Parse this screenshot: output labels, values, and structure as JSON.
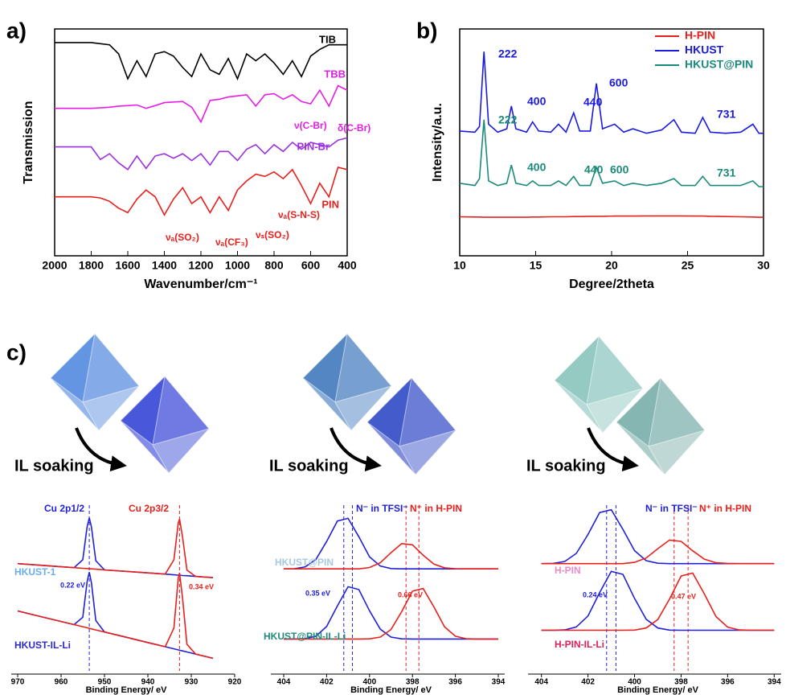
{
  "figure": {
    "panel_labels": [
      "a)",
      "b)",
      "c)"
    ],
    "steps": [
      "IL soaking",
      "IL soaking",
      "IL soaking"
    ]
  },
  "chart_data": [
    {
      "type": "line",
      "xlabel": "Wavenumber/cm⁻¹",
      "ylabel": "Transmission",
      "xlim": [
        2000,
        400
      ],
      "xticks": [
        2000,
        1800,
        1600,
        1400,
        1200,
        1000,
        800,
        600,
        400
      ],
      "ylim": [
        0,
        10
      ],
      "x": [
        2000,
        1950,
        1900,
        1850,
        1800,
        1750,
        1700,
        1650,
        1600,
        1550,
        1500,
        1450,
        1400,
        1350,
        1300,
        1250,
        1200,
        1150,
        1100,
        1050,
        1000,
        950,
        900,
        850,
        800,
        750,
        700,
        650,
        600,
        550,
        500,
        450,
        400
      ],
      "series": [
        {
          "name": "TIB",
          "color": "#000000",
          "values": [
            9.4,
            9.4,
            9.4,
            9.4,
            9.4,
            9.35,
            9.3,
            8.9,
            7.8,
            8.6,
            7.9,
            8.9,
            9.0,
            8.8,
            8.3,
            7.9,
            8.9,
            8.2,
            8.0,
            8.7,
            7.8,
            8.9,
            8.6,
            8.9,
            8.5,
            8.0,
            8.6,
            7.9,
            8.8,
            9.1,
            9.3,
            9.3,
            9.3
          ]
        },
        {
          "name": "TBB",
          "color": "#e51ee5",
          "values": [
            6.5,
            6.5,
            6.5,
            6.5,
            6.5,
            6.52,
            6.55,
            6.6,
            6.62,
            6.65,
            6.5,
            6.62,
            6.75,
            6.78,
            6.8,
            6.55,
            5.9,
            6.85,
            6.9,
            7.0,
            7.05,
            7.1,
            6.6,
            7.1,
            7.15,
            6.9,
            7.1,
            6.8,
            6.7,
            7.3,
            6.6,
            7.5,
            7.3
          ]
        },
        {
          "name": "PIN-Br",
          "color": "#9b30e0",
          "values": [
            4.8,
            4.8,
            4.8,
            4.8,
            4.8,
            4.25,
            4.5,
            4.1,
            3.8,
            4.4,
            3.85,
            4.4,
            4.5,
            4.3,
            4.5,
            4.2,
            4.5,
            4.0,
            4.6,
            4.6,
            4.2,
            4.7,
            4.9,
            4.5,
            4.9,
            4.6,
            5.0,
            4.7,
            5.0,
            4.9,
            4.8,
            5.1,
            5.2
          ]
        },
        {
          "name": "PIN",
          "color": "#e8201c",
          "values": [
            2.6,
            2.6,
            2.6,
            2.6,
            2.6,
            2.55,
            2.4,
            2.1,
            1.9,
            2.5,
            2.9,
            2.6,
            1.8,
            2.5,
            3.0,
            2.3,
            2.6,
            1.9,
            2.6,
            2.0,
            2.9,
            3.3,
            3.6,
            3.5,
            3.7,
            3.4,
            3.8,
            3.1,
            2.3,
            3.2,
            2.6,
            3.9,
            3.8
          ]
        }
      ],
      "annotations": [
        {
          "text": "ν(C-Br)",
          "color": "#e51ee5"
        },
        {
          "text": "δ(C-Br)",
          "color": "#e51ee5"
        },
        {
          "text": "νₐ(SO₂)",
          "color": "#e8201c"
        },
        {
          "text": "νₐ(CF₃)",
          "color": "#e8201c"
        },
        {
          "text": "νₛ(SO₂)",
          "color": "#e8201c"
        },
        {
          "text": "νₐ(S-N-S)",
          "color": "#e8201c"
        }
      ]
    },
    {
      "type": "line",
      "xlabel": "Degree/2theta",
      "ylabel": "Intensity/a.u.",
      "xlim": [
        10,
        30
      ],
      "xticks": [
        10,
        15,
        20,
        25,
        30
      ],
      "ylim": [
        0,
        10
      ],
      "legend": "upper right",
      "x": [
        10,
        11,
        11.3,
        11.6,
        11.9,
        12.5,
        13.1,
        13.4,
        13.7,
        14.4,
        14.8,
        15.2,
        16.0,
        16.5,
        17.0,
        17.5,
        17.9,
        18.6,
        19.0,
        19.4,
        20.2,
        20.8,
        21.4,
        22.3,
        23.3,
        24.1,
        24.6,
        25.5,
        26.0,
        26.5,
        27.5,
        28.5,
        29.3,
        29.7,
        30
      ],
      "series": [
        {
          "name": "H-PIN",
          "color": "#e8201c",
          "values": [
            1.72,
            1.71,
            1.71,
            1.7,
            1.7,
            1.7,
            1.7,
            1.7,
            1.7,
            1.7,
            1.71,
            1.71,
            1.72,
            1.72,
            1.72,
            1.73,
            1.73,
            1.74,
            1.74,
            1.74,
            1.75,
            1.75,
            1.75,
            1.76,
            1.76,
            1.76,
            1.76,
            1.75,
            1.75,
            1.74,
            1.73,
            1.72,
            1.71,
            1.7,
            1.7
          ]
        },
        {
          "name": "HKUST",
          "color": "#1a1ae0",
          "values": [
            5.5,
            5.45,
            5.7,
            9.0,
            5.8,
            5.45,
            5.6,
            6.6,
            5.6,
            5.45,
            5.9,
            5.5,
            5.45,
            5.8,
            5.45,
            6.3,
            5.5,
            5.5,
            7.6,
            5.6,
            5.8,
            5.45,
            5.6,
            5.4,
            5.55,
            6.0,
            5.45,
            5.4,
            6.1,
            5.45,
            5.4,
            5.45,
            5.8,
            5.4,
            5.4
          ]
        },
        {
          "name": "HKUST@PIN",
          "color": "#1a8a7a",
          "values": [
            3.2,
            3.1,
            3.4,
            6.0,
            3.3,
            3.1,
            3.2,
            4.0,
            3.2,
            3.1,
            3.3,
            3.1,
            3.1,
            3.3,
            3.1,
            3.5,
            3.1,
            3.1,
            3.9,
            3.2,
            3.3,
            3.1,
            3.2,
            3.1,
            3.2,
            3.4,
            3.1,
            3.1,
            3.5,
            3.1,
            3.1,
            3.1,
            3.3,
            3.05,
            3.05
          ]
        }
      ],
      "annotations": [
        {
          "text": "222",
          "color": "#1a1ae0"
        },
        {
          "text": "400",
          "color": "#1a1ae0"
        },
        {
          "text": "440",
          "color": "#1a1ae0"
        },
        {
          "text": "600",
          "color": "#1a1ae0"
        },
        {
          "text": "731",
          "color": "#1a1ae0"
        },
        {
          "text": "222",
          "color": "#1a8a7a"
        },
        {
          "text": "400",
          "color": "#1a8a7a"
        },
        {
          "text": "440",
          "color": "#1a8a7a"
        },
        {
          "text": "600",
          "color": "#1a8a7a"
        },
        {
          "text": "731",
          "color": "#1a8a7a"
        }
      ]
    },
    {
      "type": "line",
      "xlabel": "Binding Energy/ eV",
      "xlim": [
        970,
        920
      ],
      "xticks": [
        970,
        960,
        950,
        940,
        930,
        920
      ],
      "ylim": [
        0,
        10
      ],
      "x": [
        970,
        965,
        960,
        957,
        955,
        954,
        953.5,
        953,
        952,
        950,
        945,
        940,
        936,
        934,
        933,
        932.7,
        932,
        931,
        929,
        925
      ],
      "series": [
        {
          "color": "#2020d8",
          "values": [
            6.3,
            6.21,
            6.12,
            6.07,
            6.52,
            8.4,
            8.91,
            8.38,
            6.47,
            5.94,
            5.86,
            5.77,
            5.7,
            5.66,
            5.64,
            5.64,
            5.62,
            5.61,
            5.57,
            5.5
          ]
        },
        {
          "color": "#e8201c",
          "values": [
            6.3,
            6.21,
            6.12,
            6.07,
            6.03,
            6.02,
            6.01,
            6.0,
            5.98,
            5.94,
            5.86,
            5.77,
            5.7,
            6.52,
            8.62,
            8.84,
            7.8,
            5.93,
            5.57,
            5.5
          ]
        },
        {
          "color": "#2020d8",
          "values": [
            3.6,
            3.3,
            3.0,
            2.82,
            3.24,
            5.26,
            5.81,
            5.2,
            3.06,
            2.4,
            2.1,
            1.8,
            1.56,
            1.44,
            1.38,
            1.36,
            1.32,
            1.26,
            1.14,
            0.9
          ]
        },
        {
          "color": "#e8201c",
          "values": [
            3.6,
            3.3,
            3.0,
            2.82,
            2.7,
            2.64,
            2.61,
            2.58,
            2.52,
            2.4,
            2.1,
            1.8,
            1.56,
            2.63,
            5.47,
            5.76,
            4.31,
            1.7,
            1.14,
            0.9
          ]
        }
      ],
      "vlines": [
        {
          "x": 953.5,
          "color": "#2020d8"
        },
        {
          "x": 932.7,
          "color": "#e8201c"
        }
      ],
      "annotations": [
        {
          "text": "Cu 2p1/2",
          "color": "#2020d8"
        },
        {
          "text": "Cu 2p3/2",
          "color": "#e8201c"
        },
        {
          "text": "HKUST-1",
          "color": "#6aaee8"
        },
        {
          "text": "HKUST-IL-Li",
          "color": "#2b2bd0"
        },
        {
          "text": "0.22 eV",
          "color": "#2020d8"
        },
        {
          "text": "0.34 eV",
          "color": "#e8201c"
        }
      ]
    },
    {
      "type": "line",
      "xlabel": "Binding Energy/ eV",
      "xlim": [
        404.3,
        393.7
      ],
      "xticks": [
        404,
        402,
        400,
        398,
        396,
        394
      ],
      "ylim": [
        0,
        10
      ],
      "x": [
        404,
        403.5,
        403,
        402.5,
        402,
        401.5,
        401,
        400.5,
        400,
        399.5,
        399,
        398.5,
        398,
        397.5,
        397,
        396.5,
        396,
        395.5,
        395,
        394.5,
        394
      ],
      "series": [
        {
          "color": "#2020d8",
          "values": [
            6.0,
            6.01,
            6.11,
            6.54,
            7.56,
            8.73,
            8.88,
            7.83,
            6.69,
            6.16,
            6.02,
            6.0,
            6.0,
            6.0,
            6.0,
            6.0,
            6.0,
            6.0,
            6.0,
            6.0,
            6.0
          ]
        },
        {
          "color": "#e8201c",
          "values": [
            6.0,
            6.0,
            6.0,
            6.0,
            6.0,
            6.0,
            6.0,
            6.0,
            6.08,
            6.35,
            6.92,
            7.44,
            7.37,
            6.78,
            6.27,
            6.06,
            6.01,
            6.0,
            6.0,
            6.0,
            6.0
          ]
        },
        {
          "color": "#2020d8",
          "values": [
            2.0,
            2.0,
            2.02,
            2.16,
            2.71,
            3.89,
            4.98,
            4.82,
            3.61,
            2.56,
            2.11,
            2.01,
            2.0,
            2.0,
            2.0,
            2.0,
            2.0,
            2.0,
            2.0,
            2.0,
            2.0
          ]
        },
        {
          "color": "#e8201c",
          "values": [
            2.0,
            2.0,
            2.0,
            2.0,
            2.0,
            2.0,
            2.0,
            2.0,
            2.01,
            2.11,
            2.54,
            3.56,
            4.73,
            4.88,
            3.83,
            2.69,
            2.16,
            2.02,
            2.0,
            2.0,
            2.0
          ]
        }
      ],
      "vlines": [
        {
          "x": 401.2,
          "color": "#2020d8"
        },
        {
          "x": 400.8,
          "color": "#2020d8"
        },
        {
          "x": 398.3,
          "color": "#e8201c"
        },
        {
          "x": 397.7,
          "color": "#e8201c"
        }
      ],
      "annotations": [
        {
          "text": "N⁻ in TFSI⁻",
          "color": "#2020d8"
        },
        {
          "text": "N⁺ in H-PIN",
          "color": "#e8201c"
        },
        {
          "text": "HKUST@PIN",
          "color": "#a9c8e0"
        },
        {
          "text": "HKUST@PIN-IL-Li",
          "color": "#1f8a7a"
        },
        {
          "text": "0.35 eV",
          "color": "#2020d8"
        },
        {
          "text": "0.66 eV",
          "color": "#e8201c"
        }
      ]
    },
    {
      "type": "line",
      "xlabel": "Binding Energy/ eV",
      "xlim": [
        404.3,
        393.7
      ],
      "xticks": [
        404,
        402,
        400,
        398,
        396,
        394
      ],
      "ylim": [
        0,
        10
      ],
      "x": [
        404,
        403.5,
        403,
        402.5,
        402,
        401.5,
        401,
        400.5,
        400,
        399.5,
        399,
        398.5,
        398,
        397.5,
        397,
        396.5,
        396,
        395.5,
        395,
        394.5,
        394
      ],
      "series": [
        {
          "color": "#2020d8",
          "values": [
            6.3,
            6.31,
            6.42,
            6.88,
            7.96,
            9.21,
            9.37,
            8.25,
            7.04,
            6.47,
            6.32,
            6.3,
            6.3,
            6.3,
            6.3,
            6.3,
            6.3,
            6.3,
            6.3,
            6.3,
            6.3
          ]
        },
        {
          "color": "#e8201c",
          "values": [
            6.3,
            6.3,
            6.3,
            6.3,
            6.3,
            6.3,
            6.3,
            6.3,
            6.37,
            6.62,
            7.15,
            7.64,
            7.57,
            7.03,
            6.55,
            6.35,
            6.31,
            6.3,
            6.3,
            6.3,
            6.3
          ]
        },
        {
          "color": "#2020d8",
          "values": [
            2.5,
            2.5,
            2.52,
            2.69,
            3.31,
            4.64,
            5.86,
            5.69,
            4.32,
            3.13,
            2.63,
            2.51,
            2.5,
            2.5,
            2.5,
            2.5,
            2.5,
            2.5,
            2.5,
            2.5,
            2.5
          ]
        },
        {
          "color": "#e8201c",
          "values": [
            2.5,
            2.5,
            2.5,
            2.5,
            2.5,
            2.5,
            2.5,
            2.5,
            2.51,
            2.63,
            3.11,
            4.27,
            5.59,
            5.76,
            4.57,
            3.28,
            2.68,
            2.52,
            2.5,
            2.5,
            2.5
          ]
        }
      ],
      "vlines": [
        {
          "x": 401.2,
          "color": "#2020d8"
        },
        {
          "x": 400.8,
          "color": "#2020d8"
        },
        {
          "x": 398.3,
          "color": "#e8201c"
        },
        {
          "x": 397.7,
          "color": "#e8201c"
        }
      ],
      "annotations": [
        {
          "text": "N⁻ in TFSI⁻",
          "color": "#2020d8"
        },
        {
          "text": "N⁺ in H-PIN",
          "color": "#e8201c"
        },
        {
          "text": "H-PIN",
          "color": "#e98bc9"
        },
        {
          "text": "H-PIN-IL-Li",
          "color": "#e0205a"
        },
        {
          "text": "0.24 eV",
          "color": "#2020d8"
        },
        {
          "text": "0.47 eV",
          "color": "#e8201c"
        }
      ]
    }
  ]
}
